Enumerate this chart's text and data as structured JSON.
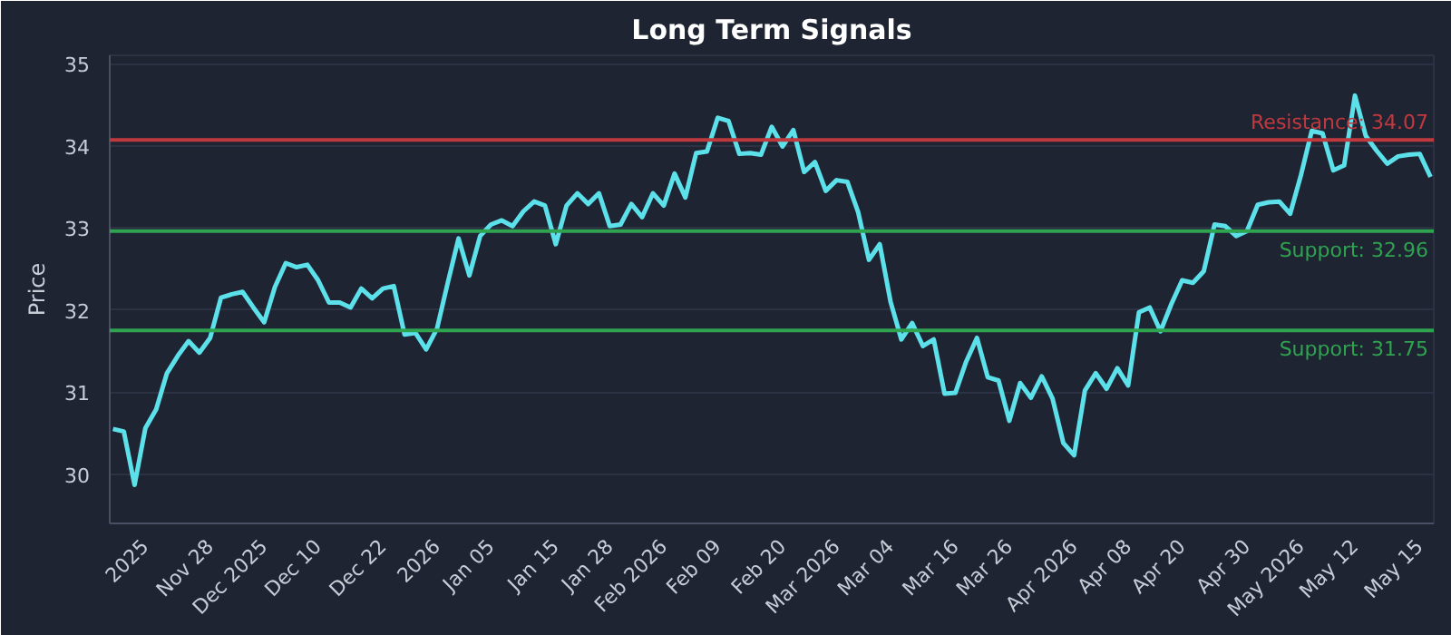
{
  "chart_data": {
    "type": "line",
    "title": "Long Term Signals",
    "ylabel": "Price",
    "categories": [
      null,
      null,
      null,
      "2025",
      null,
      null,
      null,
      null,
      null,
      "Nov 28",
      null,
      null,
      null,
      null,
      "Dec 2025",
      null,
      null,
      null,
      null,
      "Dec 10",
      null,
      null,
      null,
      null,
      null,
      "Dec 22",
      null,
      null,
      null,
      null,
      "2026",
      null,
      null,
      null,
      null,
      "Jan 05",
      null,
      null,
      null,
      null,
      null,
      "Jan 15",
      null,
      null,
      null,
      null,
      "Jan 28",
      null,
      null,
      null,
      null,
      "Feb 2026",
      null,
      null,
      null,
      null,
      "Feb 09",
      null,
      null,
      null,
      null,
      null,
      "Feb 20",
      null,
      null,
      null,
      null,
      "Mar 2026",
      null,
      null,
      null,
      null,
      "Mar 04",
      null,
      null,
      null,
      null,
      null,
      "Mar 16",
      null,
      null,
      null,
      null,
      "Mar 26",
      null,
      null,
      null,
      null,
      null,
      "Apr 2026",
      null,
      null,
      null,
      null,
      "Apr 08",
      null,
      null,
      null,
      null,
      "Apr 20",
      null,
      null,
      null,
      null,
      null,
      "Apr 30",
      null,
      null,
      null,
      null,
      "May 2026",
      null,
      null,
      null,
      null,
      "May 12",
      null,
      null,
      null,
      null,
      null,
      "May 15",
      null
    ],
    "series": [
      {
        "color": "#5ce1ea",
        "values": [
          30.55,
          30.52,
          29.87,
          30.56,
          30.79,
          31.23,
          31.44,
          31.62,
          31.48,
          31.66,
          32.15,
          32.19,
          32.22,
          32.03,
          31.85,
          32.28,
          32.57,
          32.52,
          32.55,
          32.36,
          32.09,
          32.09,
          32.03,
          32.26,
          32.14,
          32.26,
          32.29,
          31.7,
          31.72,
          31.52,
          31.77,
          32.33,
          32.87,
          32.42,
          32.9,
          33.04,
          33.09,
          33.02,
          33.2,
          33.32,
          33.27,
          32.8,
          33.27,
          33.42,
          33.29,
          33.42,
          33.02,
          33.04,
          33.29,
          33.13,
          33.42,
          33.27,
          33.66,
          33.37,
          33.91,
          33.93,
          34.34,
          34.3,
          33.9,
          33.91,
          33.89,
          34.23,
          33.99,
          34.19,
          33.68,
          33.8,
          33.45,
          33.58,
          33.56,
          33.19,
          32.61,
          32.8,
          32.1,
          31.64,
          31.84,
          31.56,
          31.64,
          30.98,
          30.99,
          31.37,
          31.66,
          31.18,
          31.14,
          30.65,
          31.11,
          30.93,
          31.19,
          30.92,
          30.38,
          30.23,
          31.02,
          31.23,
          31.04,
          31.29,
          31.08,
          31.97,
          32.03,
          31.74,
          32.07,
          32.36,
          32.33,
          32.47,
          33.04,
          33.02,
          32.9,
          32.96,
          33.28,
          33.31,
          33.32,
          33.17,
          33.64,
          34.18,
          34.15,
          33.7,
          33.76,
          34.61,
          34.12,
          33.94,
          33.78,
          33.87,
          33.89,
          33.9,
          33.62
        ]
      }
    ],
    "ylim": [
      29.4,
      35.1
    ],
    "yticks": [
      30,
      31,
      32,
      33,
      34,
      35
    ],
    "grid": "y",
    "ref_lines": [
      {
        "axis": "y",
        "value": 34.07,
        "label": "Resistance: 34.07",
        "color": "#c0393f"
      },
      {
        "axis": "y",
        "value": 32.96,
        "label": "Support: 32.96",
        "color": "#2fa350"
      },
      {
        "axis": "y",
        "value": 31.75,
        "label": "Support: 31.75",
        "color": "#2fa350"
      }
    ]
  }
}
